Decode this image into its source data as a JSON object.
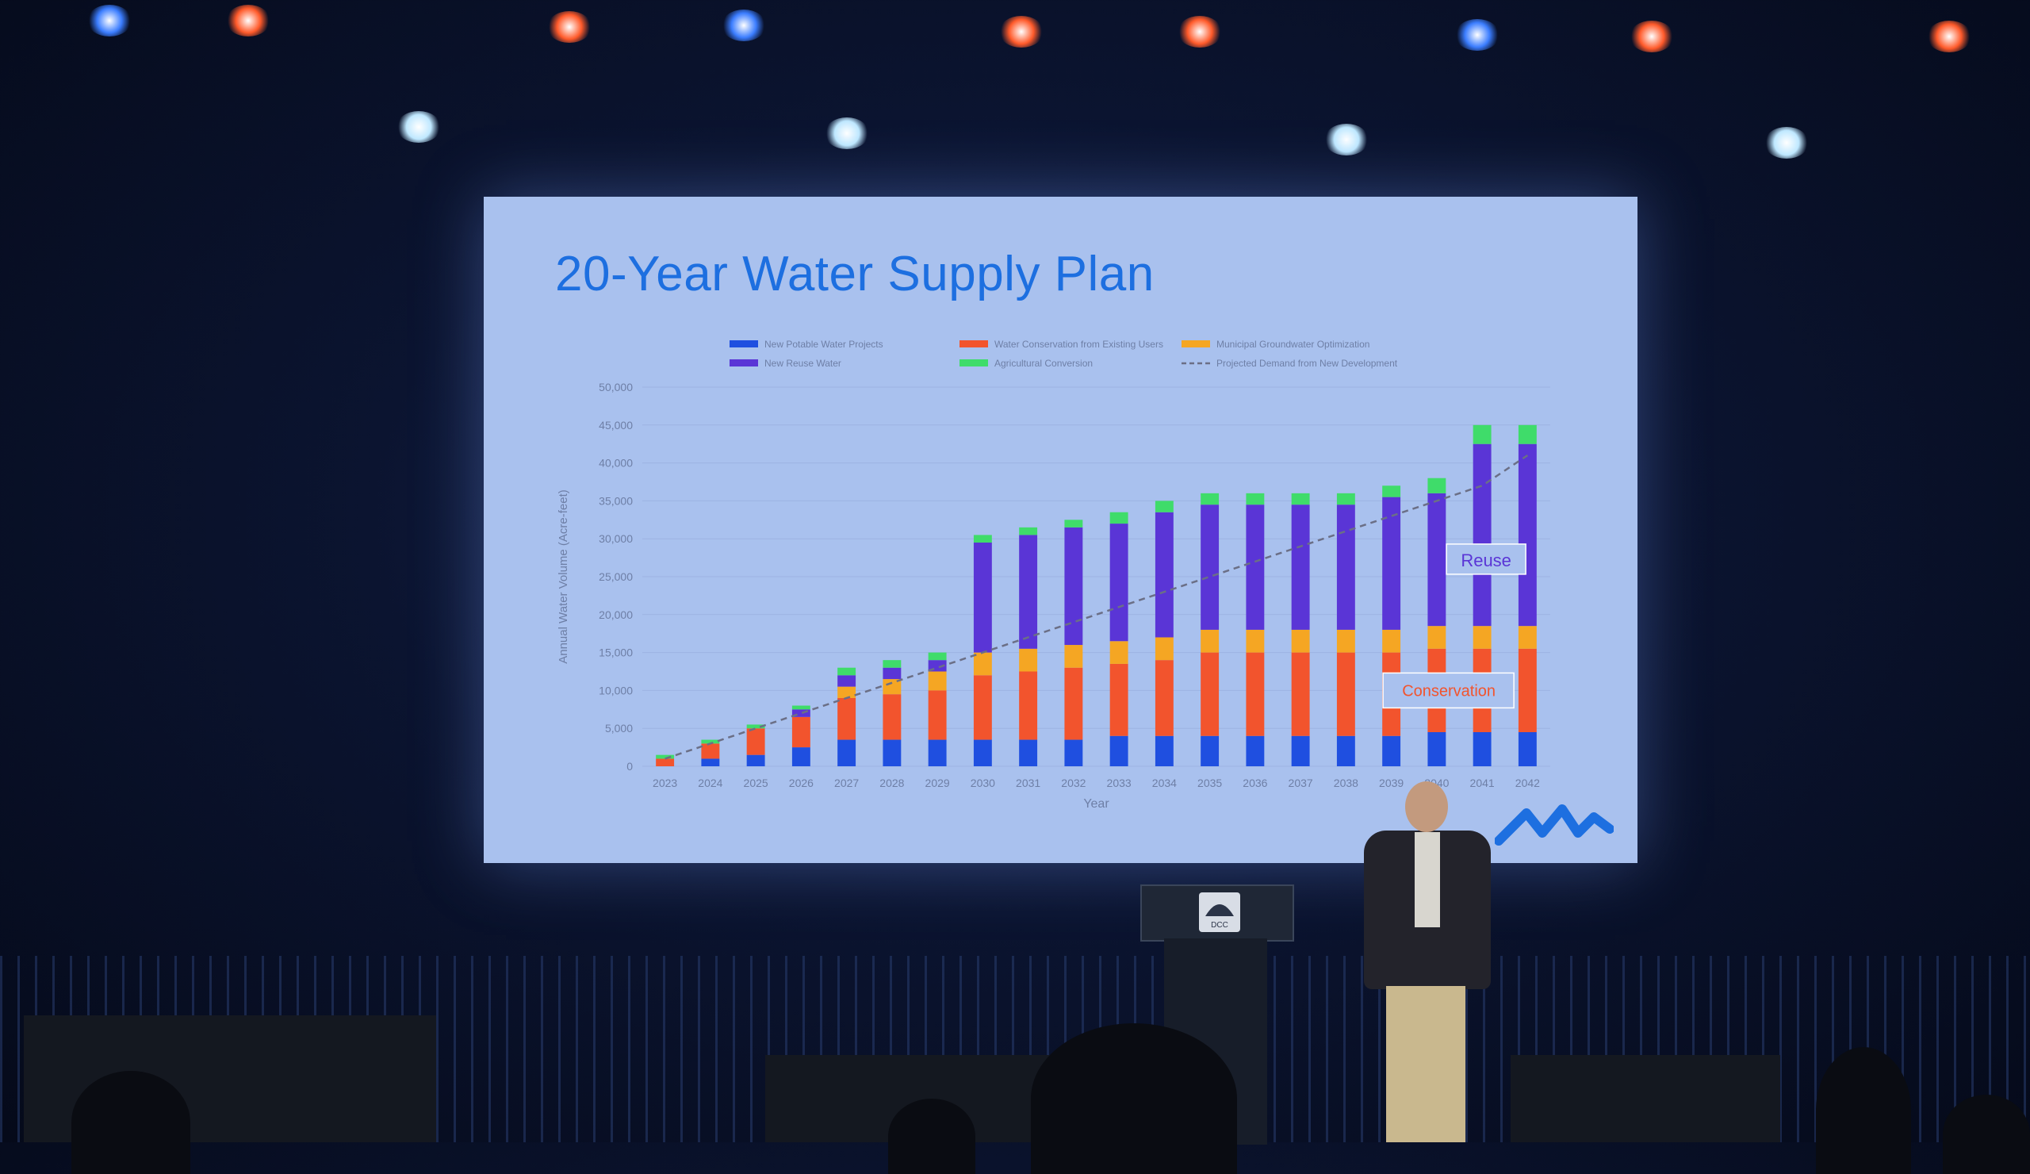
{
  "slide": {
    "title": "20-Year Water Supply Plan"
  },
  "annotations": {
    "reuse": "Reuse",
    "conservation": "Conservation"
  },
  "podium": {
    "emblem_text": "DCC"
  },
  "colors": {
    "new_potable": "#1f4fe0",
    "conservation": "#f2542d",
    "groundwater": "#f5a623",
    "reuse": "#5a35d6",
    "agricultural": "#3fdc6a",
    "projection": "#6b6f86",
    "screen_bg": "#a9c1ee",
    "title": "#1d6fe0"
  },
  "chart_data": {
    "type": "bar",
    "stacked": true,
    "categories": [
      "2023",
      "2024",
      "2025",
      "2026",
      "2027",
      "2028",
      "2029",
      "2030",
      "2031",
      "2032",
      "2033",
      "2034",
      "2035",
      "2036",
      "2037",
      "2038",
      "2039",
      "2040",
      "2041",
      "2042"
    ],
    "xlabel": "Year",
    "ylabel": "Annual Water Volume (Acre-feet)",
    "ylim": [
      0,
      50000
    ],
    "yticks": [
      "0",
      "5,000",
      "10,000",
      "15,000",
      "20,000",
      "25,000",
      "30,000",
      "35,000",
      "40,000",
      "45,000",
      "50,000"
    ],
    "legend_position": "top",
    "series": [
      {
        "name": "New Potable Water Projects",
        "color": "#1f4fe0",
        "values": [
          0,
          1000,
          1500,
          2500,
          3500,
          3500,
          3500,
          3500,
          3500,
          3500,
          4000,
          4000,
          4000,
          4000,
          4000,
          4000,
          4000,
          4500,
          4500,
          4500
        ]
      },
      {
        "name": "Water Conservation from Existing Users",
        "color": "#f2542d",
        "values": [
          1000,
          2000,
          3500,
          4000,
          5500,
          6000,
          6500,
          8500,
          9000,
          9500,
          9500,
          10000,
          11000,
          11000,
          11000,
          11000,
          11000,
          11000,
          11000,
          11000
        ]
      },
      {
        "name": "Municipal Groundwater Optimization",
        "color": "#f5a623",
        "values": [
          0,
          0,
          0,
          0,
          1500,
          2000,
          2500,
          3000,
          3000,
          3000,
          3000,
          3000,
          3000,
          3000,
          3000,
          3000,
          3000,
          3000,
          3000,
          3000
        ]
      },
      {
        "name": "New Reuse Water",
        "color": "#5a35d6",
        "values": [
          0,
          0,
          0,
          1000,
          1500,
          1500,
          1500,
          14500,
          15000,
          15500,
          15500,
          16500,
          16500,
          16500,
          16500,
          16500,
          17500,
          17500,
          24000,
          24000
        ]
      },
      {
        "name": "Agricultural Conversion",
        "color": "#3fdc6a",
        "values": [
          500,
          500,
          500,
          500,
          1000,
          1000,
          1000,
          1000,
          1000,
          1000,
          1500,
          1500,
          1500,
          1500,
          1500,
          1500,
          1500,
          2000,
          2500,
          2500
        ]
      }
    ],
    "lines": [
      {
        "name": "Projected Demand from New Development",
        "style": "dashed",
        "color": "#6b6f86",
        "values": [
          1000,
          3000,
          5000,
          7000,
          9000,
          11000,
          13000,
          15000,
          17000,
          19000,
          21000,
          23000,
          25000,
          27000,
          29000,
          31000,
          33000,
          35000,
          37000,
          41000
        ]
      }
    ]
  }
}
